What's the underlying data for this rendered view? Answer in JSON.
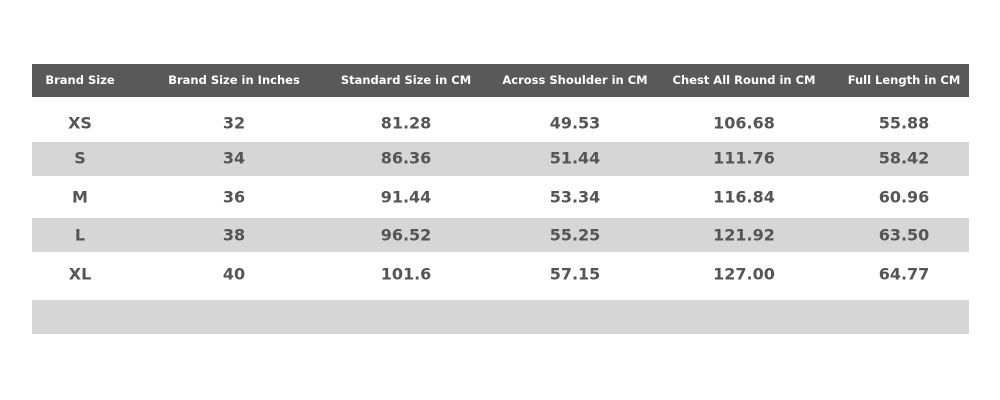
{
  "table": {
    "header": [
      "Brand Size",
      "Brand Size in Inches",
      "Standard Size in CM",
      "Across Shoulder in CM",
      "Chest All Round in CM",
      "Full Length in CM"
    ],
    "rows": [
      [
        "XS",
        "32",
        "81.28",
        "49.53",
        "106.68",
        "55.88"
      ],
      [
        "S",
        "34",
        "86.36",
        "51.44",
        "111.76",
        "58.42"
      ],
      [
        "M",
        "36",
        "91.44",
        "53.34",
        "116.84",
        "60.96"
      ],
      [
        "L",
        "38",
        "96.52",
        "55.25",
        "121.92",
        "63.50"
      ],
      [
        "XL",
        "40",
        "101.6",
        "57.15",
        "127.00",
        "64.77"
      ]
    ]
  }
}
